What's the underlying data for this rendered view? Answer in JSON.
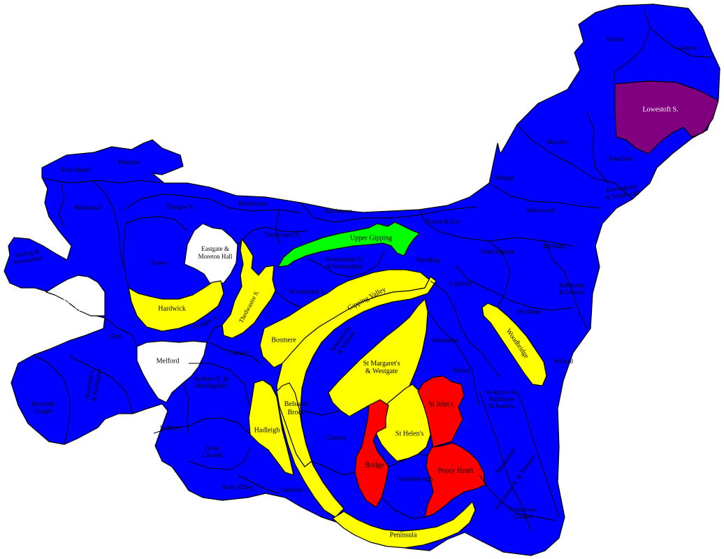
{
  "colors": {
    "blue": "#0000ff",
    "yellow": "#ffff00",
    "red": "#ff0000",
    "green": "#00ff00",
    "purple": "#800080",
    "white": "#ffffff"
  },
  "wards": [
    {
      "key": "rose_heath",
      "label": "Rose Heath",
      "color": "blue"
    },
    {
      "key": "brandon",
      "label": "Brandon",
      "color": "blue"
    },
    {
      "key": "mildenhall",
      "label": "Mildenhall",
      "color": "blue"
    },
    {
      "key": "thingoe_n",
      "label": "Thingoe N.",
      "color": "blue"
    },
    {
      "key": "blackbourn",
      "label": "Blackbourn",
      "color": "blue"
    },
    {
      "key": "hartismere",
      "label": "Hartismere",
      "color": "blue"
    },
    {
      "key": "hoxne_eye",
      "label": "Hoxne & Eye",
      "color": "blue"
    },
    {
      "key": "oulton",
      "label": "Oulton",
      "color": "blue"
    },
    {
      "key": "gunton",
      "label": "Gunton",
      "color": "blue"
    },
    {
      "key": "lowestoft_s",
      "label": "Lowestoft S.",
      "color": "purple"
    },
    {
      "key": "beccles",
      "label": "Beccles",
      "color": "blue"
    },
    {
      "key": "pakefield",
      "label": "Pakefield",
      "color": "blue"
    },
    {
      "key": "bungay",
      "label": "Bungay",
      "color": "blue"
    },
    {
      "key": "kessingland_southwold",
      "label": "Kessingland & Southwold",
      "color": "blue"
    },
    {
      "key": "halesworth",
      "label": "Halesworth",
      "color": "blue"
    },
    {
      "key": "framlingham",
      "label": "Framlingham",
      "color": "blue"
    },
    {
      "key": "blything",
      "label": "Blything",
      "color": "blue"
    },
    {
      "key": "aldeburgh_leiston",
      "label": "Aldeburgh & Leiston",
      "color": "blue"
    },
    {
      "key": "exning_newmarket",
      "label": "Exning & Newmarket",
      "color": "blue"
    },
    {
      "key": "tower",
      "label": "Tower",
      "color": "blue"
    },
    {
      "key": "eastgate_moreton_hall",
      "label": "Eastgate & Moreton Hall",
      "color": "white"
    },
    {
      "key": "thedwastre_n",
      "label": "Thedwastre N.",
      "color": "blue"
    },
    {
      "key": "upper_gipping",
      "label": "Upper Gipping",
      "color": "green"
    },
    {
      "key": "stowmarket_n_stowupland",
      "label": "Stowmarket N. & Stowupland",
      "color": "blue"
    },
    {
      "key": "thredling",
      "label": "Thredling",
      "color": "blue"
    },
    {
      "key": "carlford",
      "label": "Carlford",
      "color": "blue"
    },
    {
      "key": "wickham",
      "label": "Wickham",
      "color": "blue"
    },
    {
      "key": "newmarket_red_lodge",
      "label": "Newmarket & Red Lodge",
      "color": "white"
    },
    {
      "key": "hardwick",
      "label": "Hardwick",
      "color": "yellow"
    },
    {
      "key": "thedwastre_s",
      "label": "Thedwastre S.",
      "color": "yellow"
    },
    {
      "key": "stowmarket_s",
      "label": "Stowmarket S.",
      "color": "blue"
    },
    {
      "key": "gipping_valley",
      "label": "Gipping Valley",
      "color": "yellow"
    },
    {
      "key": "woodbridge",
      "label": "Woodbridge",
      "color": "yellow"
    },
    {
      "key": "thingoe_s",
      "label": "Thingoe S.",
      "color": "blue"
    },
    {
      "key": "clare",
      "label": "Clare",
      "color": "blue"
    },
    {
      "key": "bosmere",
      "label": "Bosmere",
      "color": "yellow"
    },
    {
      "key": "whitehouse_whitton",
      "label": "Whitehouse & Whitton",
      "color": "blue"
    },
    {
      "key": "rushmere",
      "label": "Rushmere",
      "color": "blue"
    },
    {
      "key": "melford",
      "label": "Melford",
      "color": "white"
    },
    {
      "key": "cosford",
      "label": "Cosford",
      "color": "blue"
    },
    {
      "key": "st_margarets_westgate",
      "label": "St Margaret's & Westgate",
      "color": "yellow"
    },
    {
      "key": "bixley",
      "label": "Bixley",
      "color": "blue"
    },
    {
      "key": "wilford",
      "label": "Wilford",
      "color": "blue"
    },
    {
      "key": "haverhill_cangle",
      "label": "Haverhill Cangle",
      "color": "blue"
    },
    {
      "key": "haverhill_e_kedington",
      "label": "Haverhill E. & Kedington",
      "color": "blue"
    },
    {
      "key": "sudbury_e_waldingfield",
      "label": "Sudbury E. & Waldingfield",
      "color": "blue"
    },
    {
      "key": "st_johns",
      "label": "St John's",
      "color": "red"
    },
    {
      "key": "kesgrave_rushmere_st_andrew",
      "label": "Kesgrave & Rushmere St Andrew",
      "color": "blue"
    },
    {
      "key": "belstead_brook",
      "label": "Belstead Brook",
      "color": "yellow"
    },
    {
      "key": "sudbury",
      "label": "Sudbury",
      "color": "blue"
    },
    {
      "key": "hadleigh",
      "label": "Hadleigh",
      "color": "yellow"
    },
    {
      "key": "chantry",
      "label": "Chantry",
      "color": "blue"
    },
    {
      "key": "st_helens",
      "label": "St Helen's",
      "color": "yellow"
    },
    {
      "key": "great_cornard",
      "label": "Great Cornard",
      "color": "blue"
    },
    {
      "key": "martlesham",
      "label": "Martlesham",
      "color": "blue"
    },
    {
      "key": "bridge",
      "label": "Bridge",
      "color": "red"
    },
    {
      "key": "priory_heath",
      "label": "Priory Heath",
      "color": "red"
    },
    {
      "key": "gainsborough",
      "label": "Gainsborough",
      "color": "blue"
    },
    {
      "key": "stour_valley",
      "label": "Stour Valley",
      "color": "blue"
    },
    {
      "key": "samford",
      "label": "Samford",
      "color": "blue"
    },
    {
      "key": "felixstowe_n_trimleys",
      "label": "Felixstowe N. & Trimleys",
      "color": "blue"
    },
    {
      "key": "felixstowe_coastal",
      "label": "Felixstowe Coastal",
      "color": "blue"
    },
    {
      "key": "peninsula",
      "label": "Peninsula",
      "color": "yellow"
    }
  ]
}
